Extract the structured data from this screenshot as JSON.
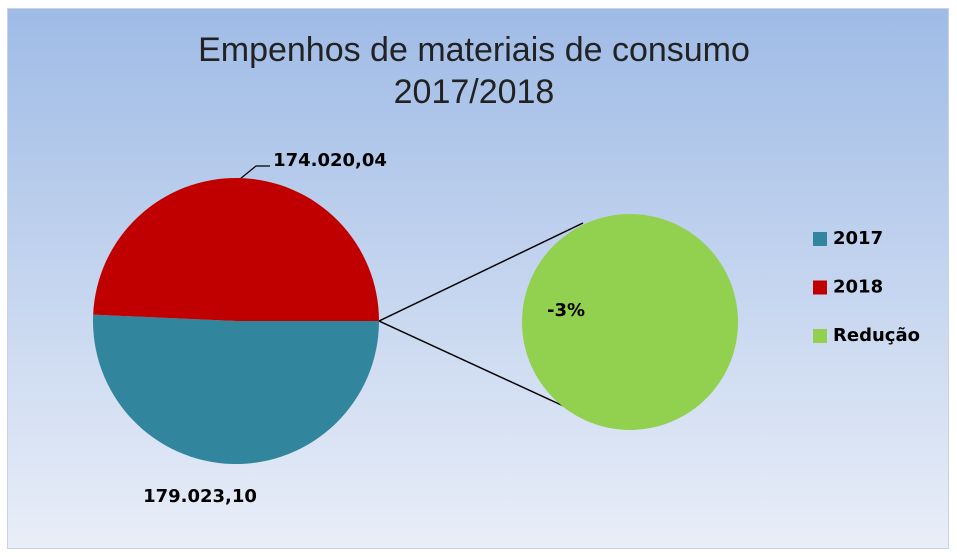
{
  "chart_data": {
    "type": "pie",
    "title": [
      "Empenhos de materiais de consumo",
      "2017/2018"
    ],
    "categories": [
      "2017",
      "2018",
      "Redução"
    ],
    "values": [
      179023.1,
      174020.04,
      -3
    ],
    "value_labels": [
      "179.023,10",
      "174.020,04",
      "-3%"
    ],
    "colors": [
      "#31859c",
      "#c00000",
      "#92d050"
    ],
    "legend": "right"
  }
}
